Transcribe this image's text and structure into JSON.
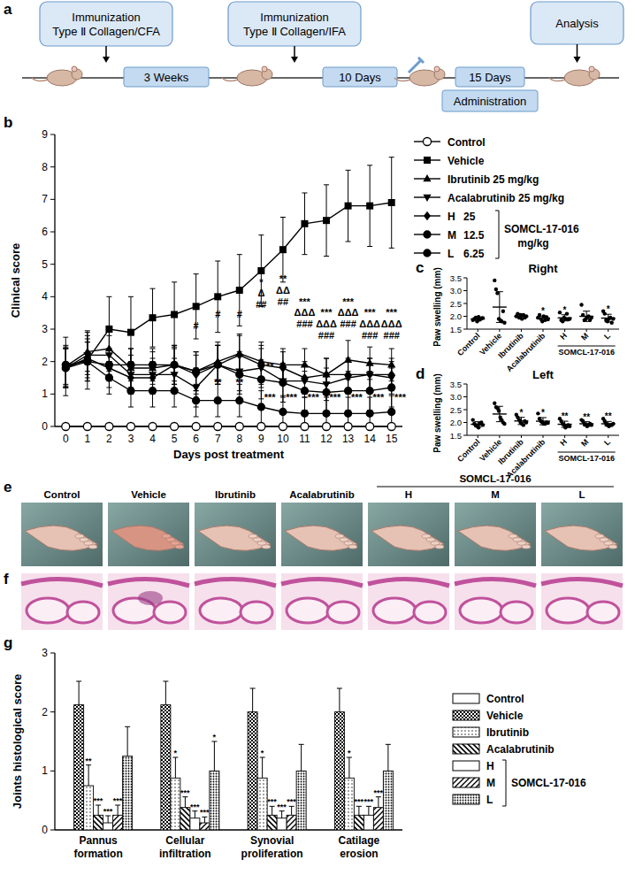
{
  "diagram": {
    "panel": "a",
    "boxes": [
      {
        "lines": [
          "Immunization",
          "Type Ⅱ Collagen/CFA"
        ]
      },
      {
        "lines": [
          "Immunization",
          "Type Ⅱ Collagen/IFA"
        ]
      },
      {
        "lines": [
          "Analysis"
        ]
      }
    ],
    "intervals": [
      "3 Weeks",
      "10 Days",
      "15 Days"
    ],
    "phase": "Administration"
  },
  "chart_data": [
    {
      "panel": "b",
      "type": "line",
      "x_label": "Days post treatment",
      "y_label": "Clinical score",
      "x": [
        0,
        1,
        2,
        3,
        4,
        5,
        6,
        7,
        8,
        9,
        10,
        11,
        12,
        13,
        14,
        15
      ],
      "xlim": [
        -0.5,
        15.5
      ],
      "xticks": [
        0,
        1,
        2,
        3,
        4,
        5,
        6,
        7,
        8,
        9,
        10,
        11,
        12,
        13,
        14,
        15
      ],
      "ylim": [
        0,
        9
      ],
      "yticks": [
        0,
        1,
        2,
        3,
        4,
        5,
        6,
        7,
        8,
        9
      ],
      "legend_group": "SOMCL-17-016",
      "legend_unit": "mg/kg",
      "series": [
        {
          "name": "Control",
          "color": "#000000",
          "marker": "circle-open",
          "values": [
            0,
            0,
            0,
            0,
            0,
            0,
            0,
            0,
            0,
            0,
            0,
            0,
            0,
            0,
            0,
            0
          ],
          "errors": [
            0,
            0,
            0,
            0,
            0,
            0,
            0,
            0,
            0,
            0,
            0,
            0,
            0,
            0,
            0,
            0
          ]
        },
        {
          "name": "Vehicle",
          "color": "#000000",
          "marker": "square",
          "values": [
            1.85,
            2.05,
            3.0,
            2.9,
            3.35,
            3.45,
            3.7,
            4.0,
            4.2,
            4.8,
            5.45,
            6.25,
            6.35,
            6.8,
            6.8,
            6.9
          ],
          "errors": [
            0.9,
            0.9,
            1.0,
            1.1,
            0.9,
            1.0,
            1.0,
            1.1,
            1.1,
            1.1,
            1.0,
            0.95,
            1.1,
            1.1,
            1.25,
            1.4
          ]
        },
        {
          "name": "Ibrutinib 25 mg/kg",
          "color": "#000000",
          "marker": "triangle-up",
          "values": [
            1.85,
            2.3,
            2.4,
            1.8,
            1.8,
            1.9,
            1.7,
            2.0,
            2.25,
            2.0,
            1.9,
            1.9,
            1.6,
            2.05,
            1.95,
            1.9
          ],
          "errors": [
            0.6,
            0.6,
            0.7,
            0.6,
            0.5,
            0.6,
            0.6,
            0.6,
            0.6,
            0.6,
            0.5,
            0.5,
            0.5,
            0.6,
            0.5,
            0.5
          ]
        },
        {
          "name": "Acalabrutinib 25 mg/kg",
          "color": "#000000",
          "marker": "triangle-down",
          "values": [
            1.8,
            2.2,
            2.2,
            1.6,
            1.6,
            1.6,
            1.2,
            1.9,
            1.7,
            1.8,
            1.4,
            1.4,
            1.3,
            1.5,
            1.6,
            1.5
          ],
          "errors": [
            0.6,
            0.6,
            0.6,
            0.6,
            0.5,
            0.5,
            0.6,
            0.6,
            0.6,
            0.6,
            0.5,
            0.5,
            0.5,
            0.5,
            0.5,
            0.5
          ]
        },
        {
          "name": "H",
          "dose": 25,
          "color": "#000000",
          "marker": "diamond",
          "values": [
            1.8,
            2.1,
            1.8,
            1.5,
            1.5,
            1.9,
            1.6,
            1.9,
            2.2,
            1.9,
            1.8,
            1.5,
            1.6,
            1.6,
            1.6,
            1.6
          ],
          "errors": [
            0.6,
            0.6,
            0.6,
            0.5,
            0.5,
            0.6,
            0.6,
            0.6,
            0.6,
            0.6,
            0.5,
            0.5,
            0.5,
            0.5,
            0.5,
            0.5
          ]
        },
        {
          "name": "M",
          "dose": 12.5,
          "color": "#000000",
          "marker": "circle",
          "values": [
            1.9,
            2.0,
            1.9,
            1.9,
            1.9,
            1.9,
            1.7,
            1.9,
            1.6,
            1.45,
            1.35,
            1.1,
            1.05,
            1.1,
            1.1,
            1.2
          ],
          "errors": [
            0.6,
            0.6,
            0.5,
            0.5,
            0.5,
            0.5,
            0.6,
            0.6,
            0.6,
            0.6,
            0.6,
            0.6,
            0.6,
            0.6,
            0.6,
            0.6
          ]
        },
        {
          "name": "L",
          "dose": 6.25,
          "color": "#000000",
          "marker": "circle",
          "values": [
            1.8,
            2.0,
            1.5,
            1.1,
            1.1,
            1.1,
            0.8,
            0.8,
            0.8,
            0.6,
            0.45,
            0.4,
            0.4,
            0.4,
            0.4,
            0.45
          ],
          "errors": [
            0.6,
            0.6,
            0.5,
            0.5,
            0.5,
            0.5,
            0.5,
            0.5,
            0.5,
            0.5,
            0.5,
            0.5,
            0.5,
            0.5,
            0.5,
            0.5
          ]
        }
      ],
      "annotations": [
        {
          "x": 6,
          "y": 3.0,
          "text": "#"
        },
        {
          "x": 6,
          "y": 0.75,
          "text": "*"
        },
        {
          "x": 7,
          "y": 3.35,
          "text": "#"
        },
        {
          "x": 7,
          "y": 1.25,
          "text": "**"
        },
        {
          "x": 8,
          "y": 3.35,
          "text": "#"
        },
        {
          "x": 8,
          "y": 1.25,
          "text": "**"
        },
        {
          "x": 9,
          "y": 4.35,
          "text": "*"
        },
        {
          "x": 9,
          "y": 4.0,
          "text": "Δ"
        },
        {
          "x": 9,
          "y": 3.65,
          "text": "##"
        },
        {
          "x": 9.4,
          "y": 1.75,
          "text": "**"
        },
        {
          "x": 9.4,
          "y": 0.8,
          "text": "***"
        },
        {
          "x": 10,
          "y": 4.45,
          "text": "**"
        },
        {
          "x": 10,
          "y": 4.1,
          "text": "ΔΔ"
        },
        {
          "x": 10,
          "y": 3.75,
          "text": "##"
        },
        {
          "x": 10.4,
          "y": 0.8,
          "text": "***"
        },
        {
          "x": 11,
          "y": 3.75,
          "text": "***"
        },
        {
          "x": 11,
          "y": 3.4,
          "text": "ΔΔΔ"
        },
        {
          "x": 11,
          "y": 3.05,
          "text": "###"
        },
        {
          "x": 11.4,
          "y": 0.8,
          "text": "***"
        },
        {
          "x": 12,
          "y": 3.4,
          "text": "***"
        },
        {
          "x": 12,
          "y": 3.05,
          "text": "ΔΔΔ"
        },
        {
          "x": 12,
          "y": 2.7,
          "text": "###"
        },
        {
          "x": 12.4,
          "y": 0.8,
          "text": "***"
        },
        {
          "x": 13,
          "y": 3.75,
          "text": "***"
        },
        {
          "x": 13,
          "y": 3.4,
          "text": "ΔΔΔ"
        },
        {
          "x": 13,
          "y": 3.05,
          "text": "###"
        },
        {
          "x": 13.4,
          "y": 0.8,
          "text": "***"
        },
        {
          "x": 14,
          "y": 3.4,
          "text": "***"
        },
        {
          "x": 14,
          "y": 3.05,
          "text": "ΔΔΔ"
        },
        {
          "x": 14,
          "y": 2.7,
          "text": "###"
        },
        {
          "x": 14.4,
          "y": 0.8,
          "text": "***"
        },
        {
          "x": 15,
          "y": 3.4,
          "text": "***"
        },
        {
          "x": 15,
          "y": 3.05,
          "text": "ΔΔΔ"
        },
        {
          "x": 15,
          "y": 2.7,
          "text": "###"
        },
        {
          "x": 15.4,
          "y": 0.8,
          "text": "***"
        }
      ]
    },
    {
      "panel": "c",
      "type": "scatter",
      "title": "Right",
      "y_label": "Paw swelling (mm)",
      "group": "SOMCL-17-016",
      "categories": [
        "Control",
        "Vehicle",
        "Ibrutinib",
        "Acalabrutinib",
        "H",
        "M",
        "L"
      ],
      "ylim": [
        1.5,
        3.5
      ],
      "yticks": [
        1.5,
        {
          "value": 2.0,
          "label": "2.0"
        },
        2.5,
        {
          "value": 3.0,
          "label": "3.0"
        },
        3.5
      ],
      "values": [
        1.9,
        2.36,
        2.0,
        1.93,
        1.94,
        2.0,
        1.93
      ],
      "errors": [
        0.06,
        0.6,
        0.06,
        0.08,
        0.12,
        0.2,
        0.15
      ],
      "significance": [
        "",
        "",
        "",
        "*",
        "*",
        "",
        "*"
      ],
      "points": [
        [
          1.85,
          1.9,
          1.95,
          1.8,
          1.98,
          1.87,
          1.92,
          1.93
        ],
        [
          3.4,
          3.05,
          2.9,
          1.9,
          1.85,
          1.8,
          2.2,
          1.75
        ],
        [
          2.0,
          2.1,
          1.95,
          2.05,
          1.9,
          2.05,
          1.95,
          2.0
        ],
        [
          1.95,
          2.05,
          1.9,
          1.8,
          2.0,
          1.85,
          1.97,
          1.88
        ],
        [
          2.15,
          1.85,
          1.8,
          1.95,
          1.9,
          2.1,
          1.88,
          1.9
        ],
        [
          2.45,
          2.05,
          1.85,
          1.9,
          1.95,
          2.0,
          1.85,
          1.95
        ],
        [
          2.2,
          2.1,
          1.85,
          1.8,
          1.9,
          1.95,
          1.75,
          1.9
        ]
      ]
    },
    {
      "panel": "d",
      "type": "scatter",
      "title": "Left",
      "y_label": "Paw swelling (mm)",
      "group": "SOMCL-17-016",
      "categories": [
        "Control",
        "Vehicle",
        "Ibrutinib",
        "Acalabrutinib",
        "H",
        "M",
        "L"
      ],
      "ylim": [
        1.5,
        3.5
      ],
      "yticks": [
        1.5,
        {
          "value": 2.0,
          "label": "2.0"
        },
        2.5,
        {
          "value": 3.0,
          "label": "3.0"
        },
        3.5
      ],
      "values": [
        1.93,
        2.33,
        2.06,
        2.05,
        1.93,
        1.95,
        1.95
      ],
      "errors": [
        0.1,
        0.3,
        0.14,
        0.14,
        0.12,
        0.08,
        0.09
      ],
      "significance": [
        "",
        "",
        "*",
        "*",
        "**",
        "**",
        "**"
      ],
      "points": [
        [
          2.1,
          1.95,
          1.9,
          1.85,
          1.8,
          1.95,
          2.0,
          1.9
        ],
        [
          2.75,
          2.6,
          2.55,
          2.45,
          2.2,
          2.1,
          2.0,
          1.95
        ],
        [
          2.3,
          2.2,
          2.1,
          2.0,
          1.95,
          1.9,
          2.05,
          2.0
        ],
        [
          2.35,
          2.15,
          2.05,
          2.0,
          1.95,
          1.95,
          2.0,
          1.98
        ],
        [
          2.15,
          2.05,
          1.95,
          1.9,
          1.8,
          1.85,
          1.9,
          1.85
        ],
        [
          2.1,
          2.05,
          1.95,
          1.9,
          1.85,
          1.9,
          1.95,
          1.9
        ],
        [
          2.15,
          2.05,
          1.95,
          1.9,
          1.85,
          1.9,
          1.9,
          1.95
        ]
      ]
    },
    {
      "panel": "g",
      "type": "bar",
      "y_label": "Joints histological score",
      "legend_group": "SOMCL-17-016",
      "categories": [
        "Pannus formation",
        "Cellular infiltration",
        "Synovial proliferation",
        "Catilage erosion"
      ],
      "ylim": [
        0,
        3
      ],
      "yticks": [
        0,
        1,
        2,
        3
      ],
      "series": [
        {
          "name": "Control",
          "color": "#ffffff",
          "values": [
            0,
            0,
            0,
            0
          ],
          "errors": [
            0,
            0,
            0,
            0
          ],
          "significance": [
            "",
            "",
            "",
            ""
          ]
        },
        {
          "name": "Vehicle",
          "color": "#000000",
          "values": [
            2.12,
            2.12,
            2.0,
            2.0
          ],
          "errors": [
            0.4,
            0.4,
            0.4,
            0.4
          ],
          "significance": [
            "",
            "",
            "",
            ""
          ]
        },
        {
          "name": "Ibrutinib",
          "color": "#000000",
          "values": [
            0.75,
            0.88,
            0.88,
            0.88
          ],
          "errors": [
            0.35,
            0.35,
            0.35,
            0.35
          ],
          "significance": [
            "**",
            "*",
            "*",
            "*"
          ]
        },
        {
          "name": "Acalabrutinib",
          "color": "#000000",
          "values": [
            0.25,
            0.38,
            0.25,
            0.25
          ],
          "errors": [
            0.17,
            0.18,
            0.15,
            0.15
          ],
          "significance": [
            "***",
            "***",
            "***",
            "***"
          ]
        },
        {
          "name": "H",
          "color": "#ffffff",
          "values": [
            0.12,
            0.2,
            0.2,
            0.25
          ],
          "errors": [
            0.12,
            0.12,
            0.12,
            0.15
          ],
          "significance": [
            "***",
            "***",
            "***",
            "***"
          ]
        },
        {
          "name": "M",
          "color": "#000000",
          "values": [
            0.25,
            0.12,
            0.25,
            0.38
          ],
          "errors": [
            0.17,
            0.1,
            0.15,
            0.18
          ],
          "significance": [
            "***",
            "***",
            "***",
            "***"
          ]
        },
        {
          "name": "L",
          "color": "#000000",
          "values": [
            1.25,
            1.0,
            1.0,
            1.0
          ],
          "errors": [
            0.5,
            0.5,
            0.45,
            0.45
          ],
          "significance": [
            "",
            "*",
            "",
            ""
          ]
        }
      ]
    }
  ],
  "images": [
    {
      "panel": "e",
      "labels": [
        "Control",
        "Vehicle",
        "Ibrutinib",
        "Acalabrutinib",
        "H",
        "M",
        "L"
      ],
      "group": "SOMCL-17-016"
    },
    {
      "panel": "f"
    }
  ]
}
